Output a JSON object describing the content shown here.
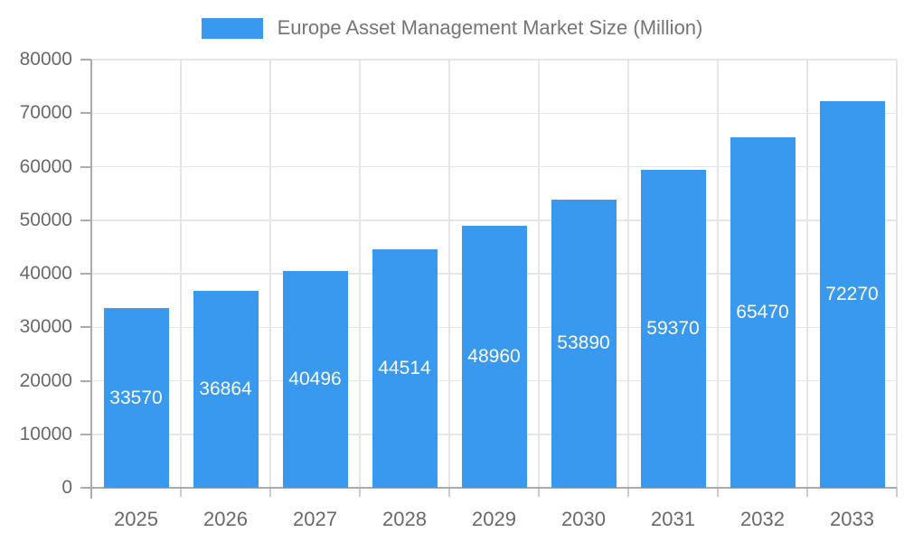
{
  "chart_data": {
    "type": "bar",
    "title": "Europe Asset Management Market Size (Million)",
    "categories": [
      "2025",
      "2026",
      "2027",
      "2028",
      "2029",
      "2030",
      "2031",
      "2032",
      "2033"
    ],
    "values": [
      33570,
      36864,
      40496,
      44514,
      48960,
      53890,
      59370,
      65470,
      72270
    ],
    "series_name": "Europe Asset Management Market Size (Million)",
    "xlabel": "",
    "ylabel": "",
    "ylim": [
      0,
      80000
    ],
    "ytick_step": 10000,
    "yticks": [
      0,
      10000,
      20000,
      30000,
      40000,
      50000,
      60000,
      70000,
      80000
    ],
    "bar_color": "#3999ee",
    "value_label_color": "#ffffff",
    "grid": "on",
    "legend_position": "top-center"
  }
}
